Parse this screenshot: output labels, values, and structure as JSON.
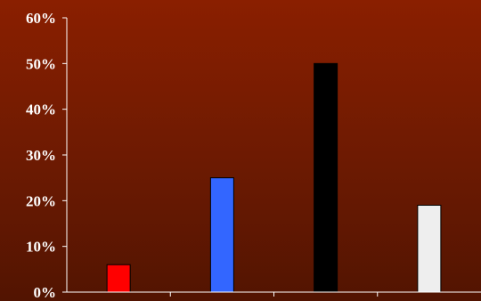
{
  "chart_data": {
    "type": "bar",
    "categories": [
      "",
      "",
      "",
      ""
    ],
    "values": [
      6,
      25,
      50,
      19
    ],
    "colors": [
      "#ff0000",
      "#3366ff",
      "#000000",
      "#eeeeee"
    ],
    "ylim": [
      0,
      60
    ],
    "yticks": [
      0,
      10,
      20,
      30,
      40,
      50,
      60
    ],
    "ytick_labels": [
      "0%",
      "10%",
      "20%",
      "30%",
      "40%",
      "50%",
      "60%"
    ],
    "grid": false,
    "background": "#7a1c00",
    "axis_color": "#ffffff"
  }
}
